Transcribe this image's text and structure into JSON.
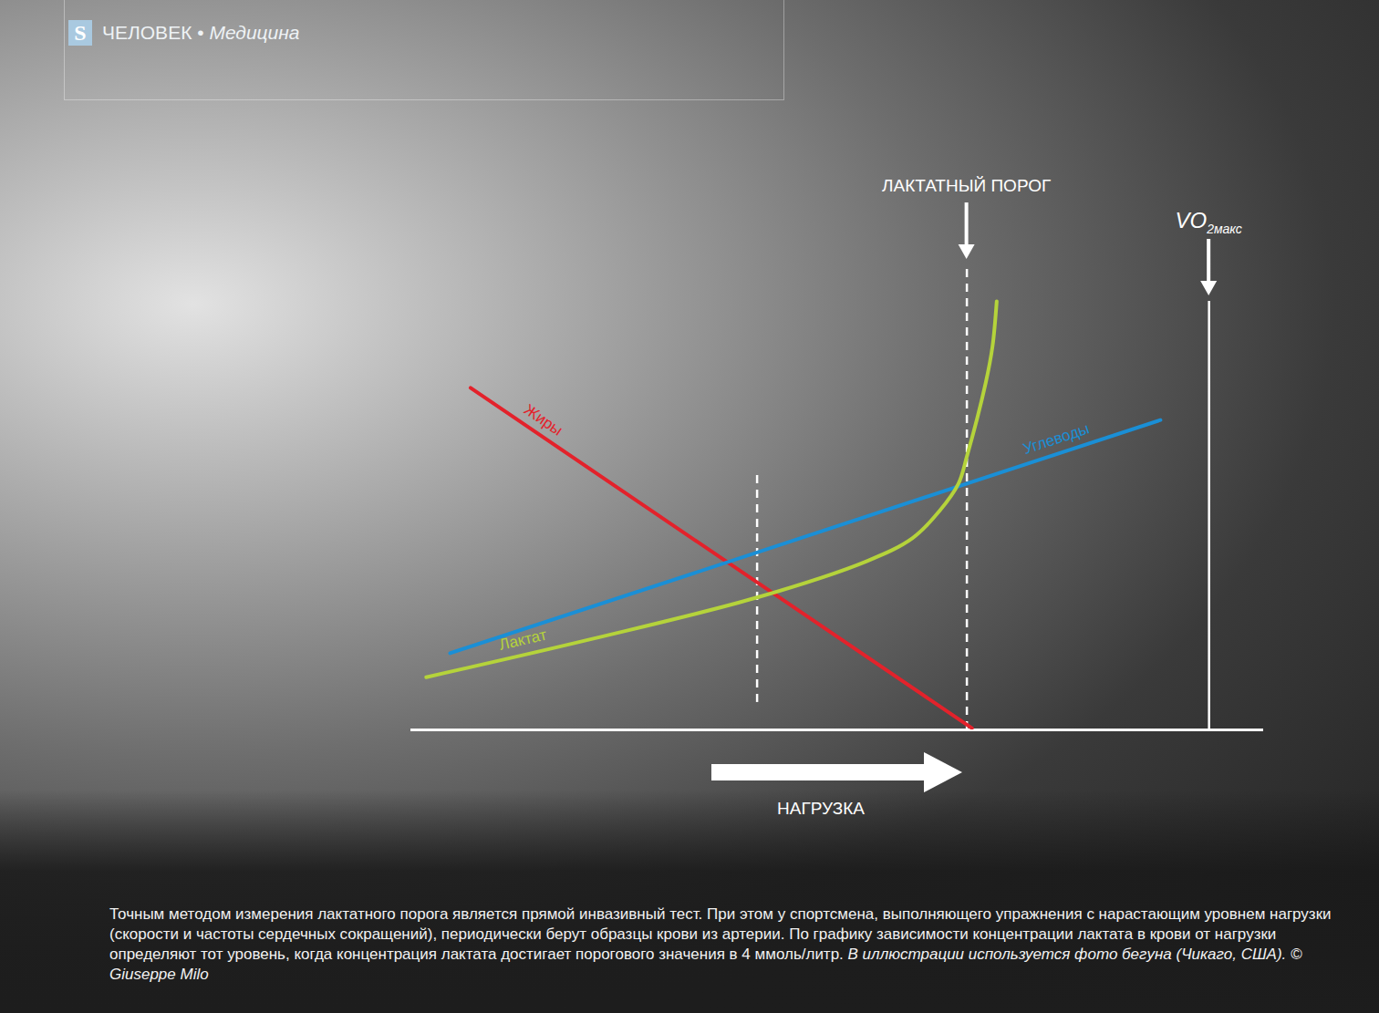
{
  "chart_data": {
    "type": "line",
    "header": {
      "logo": "S",
      "section": "ЧЕЛОВЕК",
      "separator": "•",
      "subsection": "Медицина"
    },
    "x_label": "НАГРУЗКА",
    "xlim": [
      0,
      100
    ],
    "ylim": [
      0,
      110
    ],
    "tick_labels": false,
    "grid": false,
    "series": [
      {
        "name": "Жиры",
        "color": "#e3222b",
        "line_style": "solid",
        "x": [
          7.0,
          65.8
        ],
        "values": [
          79.8,
          0.4
        ]
      },
      {
        "name": "Углеводы",
        "color": "#1a8fd6",
        "line_style": "solid",
        "x": [
          4.6,
          87.9
        ],
        "values": [
          17.9,
          72.3
        ]
      },
      {
        "name": "Лактат",
        "color": "#b5d33b",
        "line_style": "solid",
        "x": [
          1.8,
          21.4,
          40.6,
          53.5,
          58.8,
          62.0,
          64.2,
          65.2,
          67.4,
          68.2,
          68.7
        ],
        "values": [
          12.3,
          21.3,
          30.9,
          39.4,
          44.7,
          51.1,
          57.4,
          63.8,
          80.9,
          89.4,
          100
        ]
      }
    ],
    "annotations": [
      {
        "x": 40.6,
        "y": [
          6.4,
          60.6
        ],
        "line_style": "dashed"
      },
      {
        "x": 65.2,
        "y": [
          0,
          108.5
        ],
        "line_style": "dashed",
        "label": "ЛАКТАТНЫЙ ПОРОГ"
      },
      {
        "x": 93.6,
        "y": [
          0,
          100
        ],
        "line_style": "solid",
        "label": "VO",
        "label_subscript": "2макс"
      }
    ],
    "caption": "Точным методом измерения лактатного порога является прямой инвазивный тест. При этом у спортсмена, выполняющего упражнения с нарастающим уровнем нагрузки (скорости и частоты сердечных сокращений), периодически берут образцы крови из артерии. По графику зависимости концентрации лактата в крови от нагрузки определяют тот уровень, когда концентрация лактата достигает порогового значения в 4 ммоль/литр.",
    "credit": "В иллюстрации используется фото бегуна (Чикаго, США). © Giuseppe Milo"
  }
}
